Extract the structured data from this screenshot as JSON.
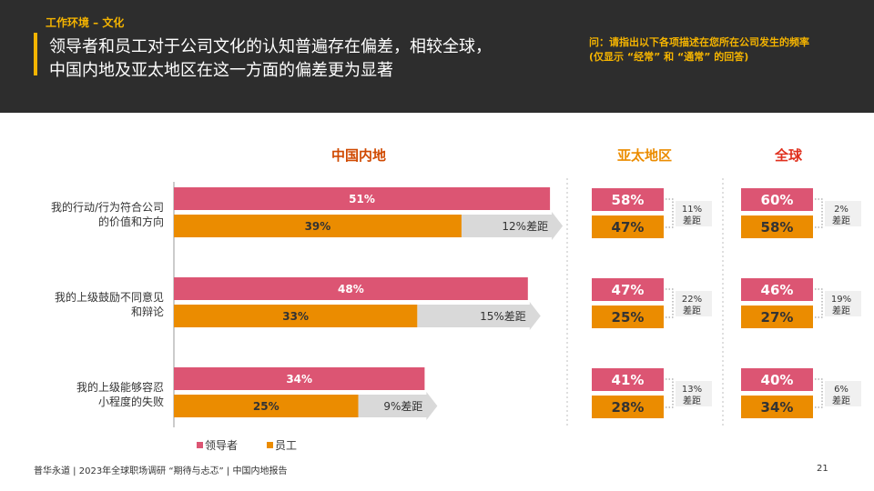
{
  "header": {
    "section": "工作环境 – 文化",
    "title_line1": "领导者和员工对于公司文化的认知普遍存在偏差，相较全球，",
    "title_line2": "中国内地及亚太地区在这一方面的偏差更为显著",
    "question_line1": "问：请指出以下各项描述在您所在公司发生的频率",
    "question_line2": "(仅显示 “经常” 和 “通常” 的回答)"
  },
  "chart_data": {
    "type": "bar",
    "orientation": "horizontal",
    "unit": "%",
    "categories": [
      [
        "我的行动/行为符合公司",
        "的价值和方向"
      ],
      [
        "我的上级鼓励不同意见",
        "和辩论"
      ],
      [
        "我的上级能够容忍",
        "小程度的失败"
      ]
    ],
    "series_names": [
      "领导者",
      "员工"
    ],
    "colors": {
      "leaders": "#dc5573",
      "employees": "#eb8c00",
      "gap_arrow": "#d9d9d9"
    },
    "gap_suffix": "差距",
    "panels": [
      {
        "title": "中国内地",
        "title_color": "#d04a02",
        "leaders": [
          51,
          48,
          34
        ],
        "employees": [
          39,
          33,
          25
        ],
        "gaps": [
          12,
          15,
          9
        ]
      },
      {
        "title": "亚太地区",
        "title_color": "#eb8c00",
        "leaders": [
          58,
          47,
          41
        ],
        "employees": [
          47,
          25,
          28
        ],
        "gaps": [
          11,
          22,
          13
        ]
      },
      {
        "title": "全球",
        "title_color": "#e0301e",
        "leaders": [
          60,
          46,
          40
        ],
        "employees": [
          58,
          27,
          34
        ],
        "gaps": [
          2,
          19,
          6
        ]
      }
    ]
  },
  "footer": {
    "text": "普华永道 | 2023年全球职场调研 “期待与忐忑” | 中国内地报告",
    "page": "21"
  }
}
